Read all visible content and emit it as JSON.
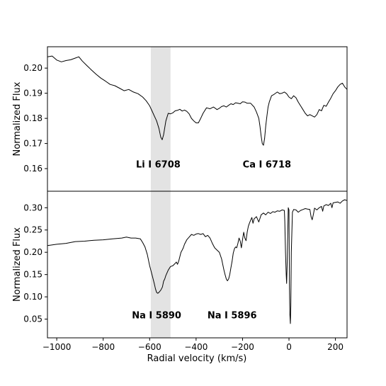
{
  "chart_data": {
    "type": "line",
    "xlabel": "Radial velocity (km/s)",
    "xlim": [
      -1040,
      250
    ],
    "xticks": [
      -1000,
      -800,
      -600,
      -400,
      -200,
      0,
      200
    ],
    "shaded_band": {
      "x_range": [
        -595,
        -510
      ],
      "color": "#e3e3e3"
    },
    "panels": [
      {
        "id": "top",
        "ylabel": "Normalized Flux",
        "ylim": [
          0.151,
          0.2085
        ],
        "yticks": [
          0.16,
          0.17,
          0.18,
          0.19,
          0.2
        ],
        "annotations": [
          {
            "text": "Li I 6708",
            "x": -563,
            "y": 0.1605
          },
          {
            "text": "Ca I 6718",
            "x": -95,
            "y": 0.1605
          }
        ],
        "series": [
          {
            "x": [
              -1040,
              -1020,
              -1000,
              -980,
              -960,
              -940,
              -920,
              -905,
              -890,
              -870,
              -850,
              -830,
              -810,
              -790,
              -770,
              -750,
              -730,
              -710,
              -690,
              -670,
              -650,
              -630,
              -615,
              -600,
              -590,
              -580,
              -570,
              -560,
              -552,
              -546,
              -540,
              -530,
              -520,
              -510,
              -500,
              -490,
              -480,
              -470,
              -460,
              -450,
              -440,
              -430,
              -420,
              -410,
              -400,
              -390,
              -380,
              -370,
              -355,
              -340,
              -325,
              -310,
              -300,
              -290,
              -280,
              -270,
              -260,
              -250,
              -240,
              -230,
              -220,
              -210,
              -200,
              -190,
              -180,
              -165,
              -150,
              -140,
              -130,
              -125,
              -120,
              -115,
              -110,
              -105,
              -100,
              -95,
              -90,
              -85,
              -75,
              -65,
              -50,
              -40,
              -30,
              -20,
              -10,
              0,
              10,
              20,
              30,
              40,
              50,
              60,
              70,
              80,
              90,
              100,
              110,
              120,
              130,
              140,
              150,
              160,
              170,
              180,
              190,
              200,
              210,
              220,
              230,
              240,
              250
            ],
            "y": [
              0.2045,
              0.2048,
              0.2032,
              0.2025,
              0.203,
              0.2033,
              0.204,
              0.2045,
              0.2028,
              0.201,
              0.1992,
              0.1975,
              0.196,
              0.1948,
              0.1935,
              0.193,
              0.192,
              0.191,
              0.1915,
              0.1905,
              0.1898,
              0.1885,
              0.187,
              0.185,
              0.183,
              0.181,
              0.179,
              0.176,
              0.1725,
              0.1715,
              0.1735,
              0.179,
              0.182,
              0.1818,
              0.1822,
              0.183,
              0.1832,
              0.1836,
              0.1829,
              0.1833,
              0.1828,
              0.1818,
              0.18,
              0.179,
              0.1782,
              0.1782,
              0.18,
              0.182,
              0.1842,
              0.1838,
              0.1845,
              0.1835,
              0.184,
              0.1847,
              0.185,
              0.1845,
              0.1852,
              0.1858,
              0.1855,
              0.1862,
              0.186,
              0.1858,
              0.1866,
              0.1865,
              0.186,
              0.186,
              0.1845,
              0.1825,
              0.18,
              0.177,
              0.173,
              0.17,
              0.1693,
              0.172,
              0.177,
              0.181,
              0.1845,
              0.1865,
              0.189,
              0.1895,
              0.1905,
              0.1898,
              0.19,
              0.1905,
              0.1898,
              0.1885,
              0.1878,
              0.189,
              0.1882,
              0.1865,
              0.185,
              0.1835,
              0.182,
              0.181,
              0.1815,
              0.181,
              0.1805,
              0.1815,
              0.1835,
              0.183,
              0.1852,
              0.1848,
              0.1865,
              0.188,
              0.1898,
              0.191,
              0.1925,
              0.1935,
              0.194,
              0.1925,
              0.1915
            ]
          }
        ]
      },
      {
        "id": "bottom",
        "ylabel": "Normalized Flux",
        "ylim": [
          0.008,
          0.337
        ],
        "yticks": [
          0.05,
          0.1,
          0.15,
          0.2,
          0.25,
          0.3
        ],
        "annotations": [
          {
            "text": "Na I 5890",
            "x": -570,
            "y": 0.052
          },
          {
            "text": "Na I 5896",
            "x": -245,
            "y": 0.052
          }
        ],
        "series": [
          {
            "x": [
              -1040,
              -1000,
              -960,
              -920,
              -880,
              -840,
              -800,
              -760,
              -720,
              -700,
              -680,
              -660,
              -640,
              -630,
              -620,
              -610,
              -600,
              -590,
              -580,
              -575,
              -570,
              -565,
              -560,
              -552,
              -545,
              -540,
              -535,
              -530,
              -520,
              -510,
              -500,
              -490,
              -485,
              -480,
              -475,
              -470,
              -465,
              -460,
              -455,
              -450,
              -440,
              -430,
              -420,
              -410,
              -400,
              -390,
              -380,
              -370,
              -360,
              -350,
              -340,
              -330,
              -320,
              -310,
              -300,
              -290,
              -285,
              -280,
              -275,
              -270,
              -265,
              -260,
              -255,
              -250,
              -245,
              -240,
              -235,
              -230,
              -225,
              -220,
              -215,
              -210,
              -205,
              -200,
              -195,
              -190,
              -185,
              -180,
              -175,
              -170,
              -165,
              -160,
              -155,
              -150,
              -140,
              -130,
              -120,
              -110,
              -100,
              -90,
              -80,
              -70,
              -60,
              -50,
              -40,
              -30,
              -20,
              -18,
              -15,
              -12,
              -10,
              -8,
              -5,
              -3,
              0,
              2,
              4,
              6,
              8,
              10,
              15,
              20,
              30,
              40,
              50,
              60,
              70,
              80,
              90,
              95,
              100,
              105,
              110,
              120,
              130,
              140,
              145,
              150,
              160,
              170,
              180,
              185,
              190,
              200,
              210,
              220,
              230,
              240,
              250
            ],
            "y": [
              0.215,
              0.218,
              0.22,
              0.224,
              0.225,
              0.227,
              0.228,
              0.23,
              0.232,
              0.234,
              0.232,
              0.232,
              0.23,
              0.222,
              0.212,
              0.195,
              0.17,
              0.15,
              0.13,
              0.118,
              0.11,
              0.108,
              0.11,
              0.115,
              0.122,
              0.135,
              0.14,
              0.148,
              0.16,
              0.168,
              0.17,
              0.175,
              0.178,
              0.173,
              0.18,
              0.19,
              0.2,
              0.205,
              0.21,
              0.218,
              0.228,
              0.234,
              0.24,
              0.238,
              0.241,
              0.242,
              0.24,
              0.242,
              0.235,
              0.238,
              0.232,
              0.22,
              0.21,
              0.205,
              0.2,
              0.185,
              0.172,
              0.16,
              0.15,
              0.14,
              0.136,
              0.14,
              0.15,
              0.165,
              0.18,
              0.198,
              0.208,
              0.212,
              0.21,
              0.22,
              0.232,
              0.225,
              0.21,
              0.228,
              0.245,
              0.232,
              0.226,
              0.245,
              0.258,
              0.266,
              0.272,
              0.278,
              0.265,
              0.275,
              0.28,
              0.268,
              0.284,
              0.288,
              0.284,
              0.29,
              0.287,
              0.291,
              0.29,
              0.293,
              0.292,
              0.295,
              0.294,
              0.27,
              0.2,
              0.15,
              0.13,
              0.17,
              0.25,
              0.3,
              0.295,
              0.12,
              0.06,
              0.04,
              0.08,
              0.2,
              0.29,
              0.296,
              0.295,
              0.29,
              0.294,
              0.296,
              0.298,
              0.297,
              0.296,
              0.28,
              0.273,
              0.285,
              0.299,
              0.295,
              0.3,
              0.303,
              0.292,
              0.304,
              0.307,
              0.305,
              0.31,
              0.3,
              0.311,
              0.312,
              0.313,
              0.31,
              0.315,
              0.318,
              0.316
            ]
          }
        ]
      }
    ]
  }
}
